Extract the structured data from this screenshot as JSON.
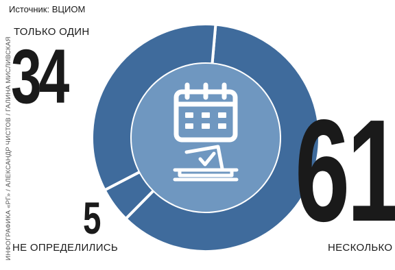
{
  "source": "Источник: ВЦИОМ",
  "credit": "ИНФОГРАФИКА «РГ» / АЛЕКСАНДР ЧИСТОВ / ГАЛИНА МИСЛИВСКАЯ",
  "colors": {
    "ring_main": "#3f6b9c",
    "ring_light": "#6e97c2",
    "center": "#6f97c0",
    "icon": "#ffffff",
    "text": "#1a1a1a"
  },
  "chart_data": {
    "type": "pie",
    "style": "donut",
    "slices": [
      {
        "label": "НЕСКОЛЬКО",
        "value": 61
      },
      {
        "label": "НЕ ОПРЕДЕЛИЛИСЬ",
        "value": 5
      },
      {
        "label": "ТОЛЬКО ОДИН",
        "value": 34
      }
    ],
    "center_icon": "calendar-ballot-box-icon"
  }
}
